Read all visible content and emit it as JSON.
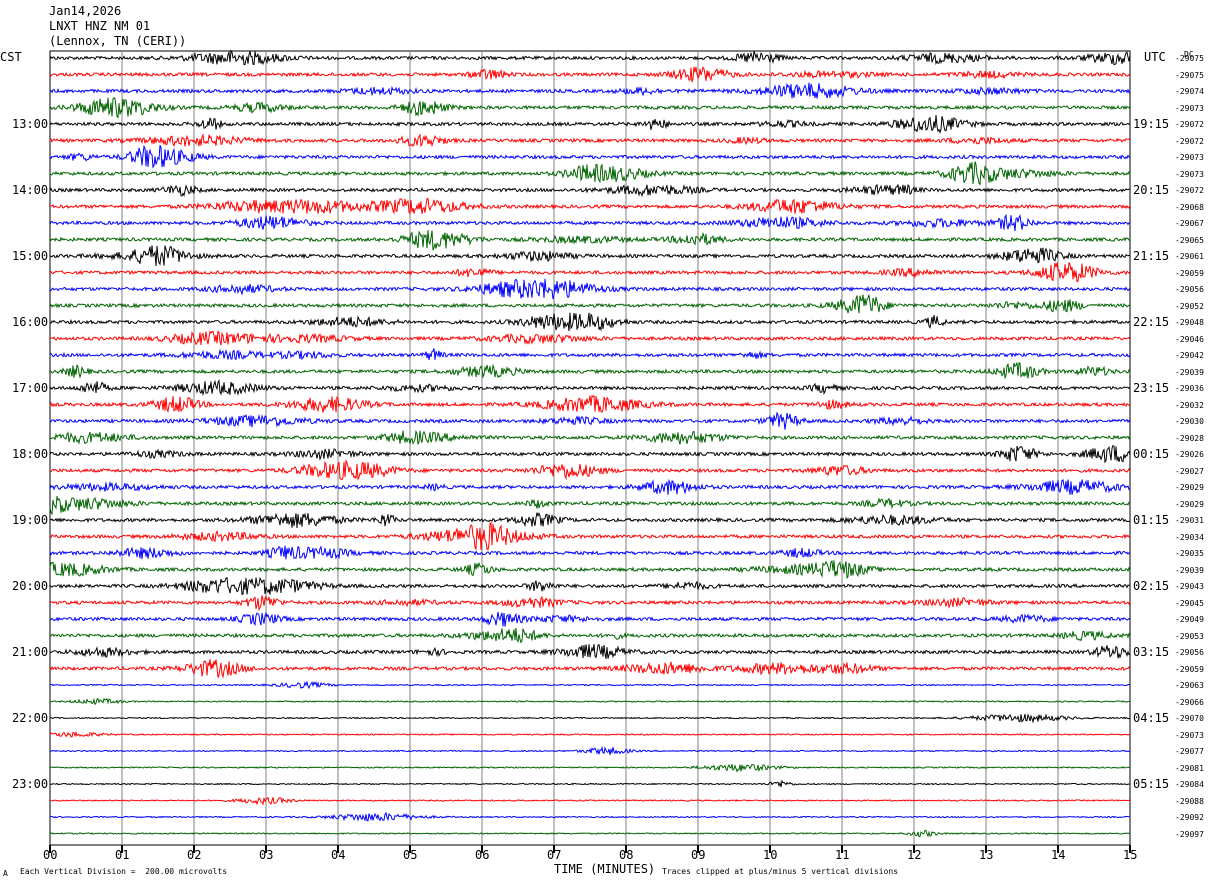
{
  "header": {
    "date": "Jan14,2026",
    "station": "LNXT HNZ NM 01",
    "location": "(Lennox, TN (CERI))"
  },
  "left_tz": "CST",
  "right_tz": "UTC",
  "right_top_label": "DC",
  "footer": {
    "scale_text": "Each Vertical Division =  200.00 microvolts",
    "clip_text": "Traces clipped at plus/minus 5 vertical divisions",
    "corner_mark": "A"
  },
  "colors": {
    "black": "#000000",
    "red": "#ff0000",
    "blue": "#0000ff",
    "green": "#006400",
    "grid": "#808080"
  },
  "chart_data": {
    "type": "line",
    "xlabel": "TIME (MINUTES)",
    "x_ticks": [
      "00",
      "01",
      "02",
      "03",
      "04",
      "05",
      "06",
      "07",
      "08",
      "09",
      "10",
      "11",
      "12",
      "13",
      "14",
      "15"
    ],
    "xlim": [
      0,
      15
    ],
    "trace_colors": [
      "black",
      "red",
      "blue",
      "green"
    ],
    "left_hour_labels": [
      "13:00",
      "14:00",
      "15:00",
      "16:00",
      "17:00",
      "18:00",
      "19:00",
      "20:00",
      "21:00",
      "22:00",
      "23:00"
    ],
    "right_hour_labels": [
      "19:15",
      "20:15",
      "21:15",
      "22:15",
      "23:15",
      "00:15",
      "01:15",
      "02:15",
      "03:15",
      "04:15",
      "05:15"
    ],
    "dc_offsets": [
      "-29075",
      "-29075",
      "-29074",
      "-29073",
      "-29072",
      "-29072",
      "-29073",
      "-29073",
      "-29072",
      "-29068",
      "-29067",
      "-29065",
      "-29061",
      "-29059",
      "-29056",
      "-29052",
      "-29048",
      "-29046",
      "-29042",
      "-29039",
      "-29036",
      "-29032",
      "-29030",
      "-29028",
      "-29026",
      "-29027",
      "-29029",
      "-29029",
      "-29031",
      "-29034",
      "-29035",
      "-29039",
      "-29043",
      "-29045",
      "-29049",
      "-29053",
      "-29056",
      "-29059",
      "-29063",
      "-29066",
      "-29070",
      "-29073",
      "-29077",
      "-29081",
      "-29084",
      "-29088",
      "-29092",
      "-29097"
    ]
  }
}
